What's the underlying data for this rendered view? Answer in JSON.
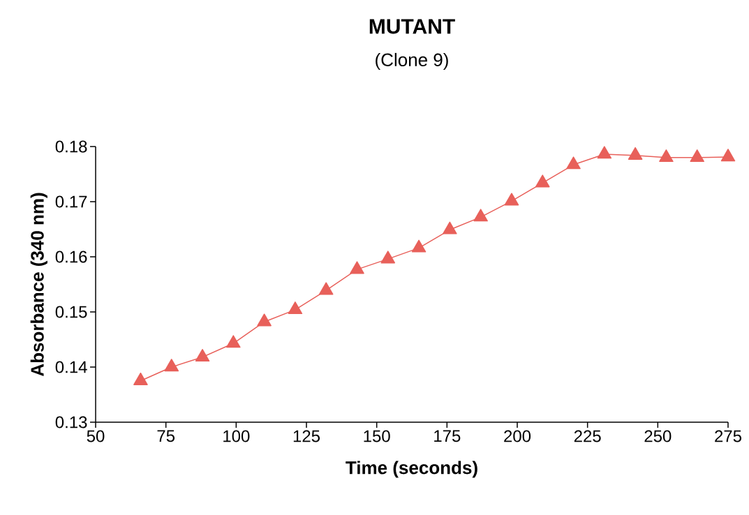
{
  "chart_data": {
    "type": "line",
    "title": "MUTANT",
    "subtitle": "(Clone 9)",
    "xlabel": "Time (seconds)",
    "ylabel": "Absorbance (340 nm)",
    "x": [
      66,
      77,
      88,
      99,
      110,
      121,
      132,
      143,
      154,
      165,
      176,
      187,
      198,
      209,
      220,
      231,
      242,
      253,
      264,
      275
    ],
    "series": [
      {
        "color": "#e8605a",
        "values": [
          0.1375,
          0.14,
          0.1418,
          0.1443,
          0.1482,
          0.1504,
          0.1539,
          0.1577,
          0.1596,
          0.1616,
          0.1649,
          0.1672,
          0.1701,
          0.1734,
          0.1767,
          0.1786,
          0.1784,
          0.178,
          0.178,
          0.1781
        ]
      }
    ],
    "xlim": [
      50,
      275
    ],
    "xticks": [
      50,
      75,
      100,
      125,
      150,
      175,
      200,
      225,
      250,
      275
    ],
    "ylim": [
      0.13,
      0.18
    ],
    "yticks": [
      0.13,
      0.14,
      0.15,
      0.16,
      0.17,
      0.18
    ],
    "marker": "triangle",
    "line_style": "solid",
    "grid": false
  }
}
